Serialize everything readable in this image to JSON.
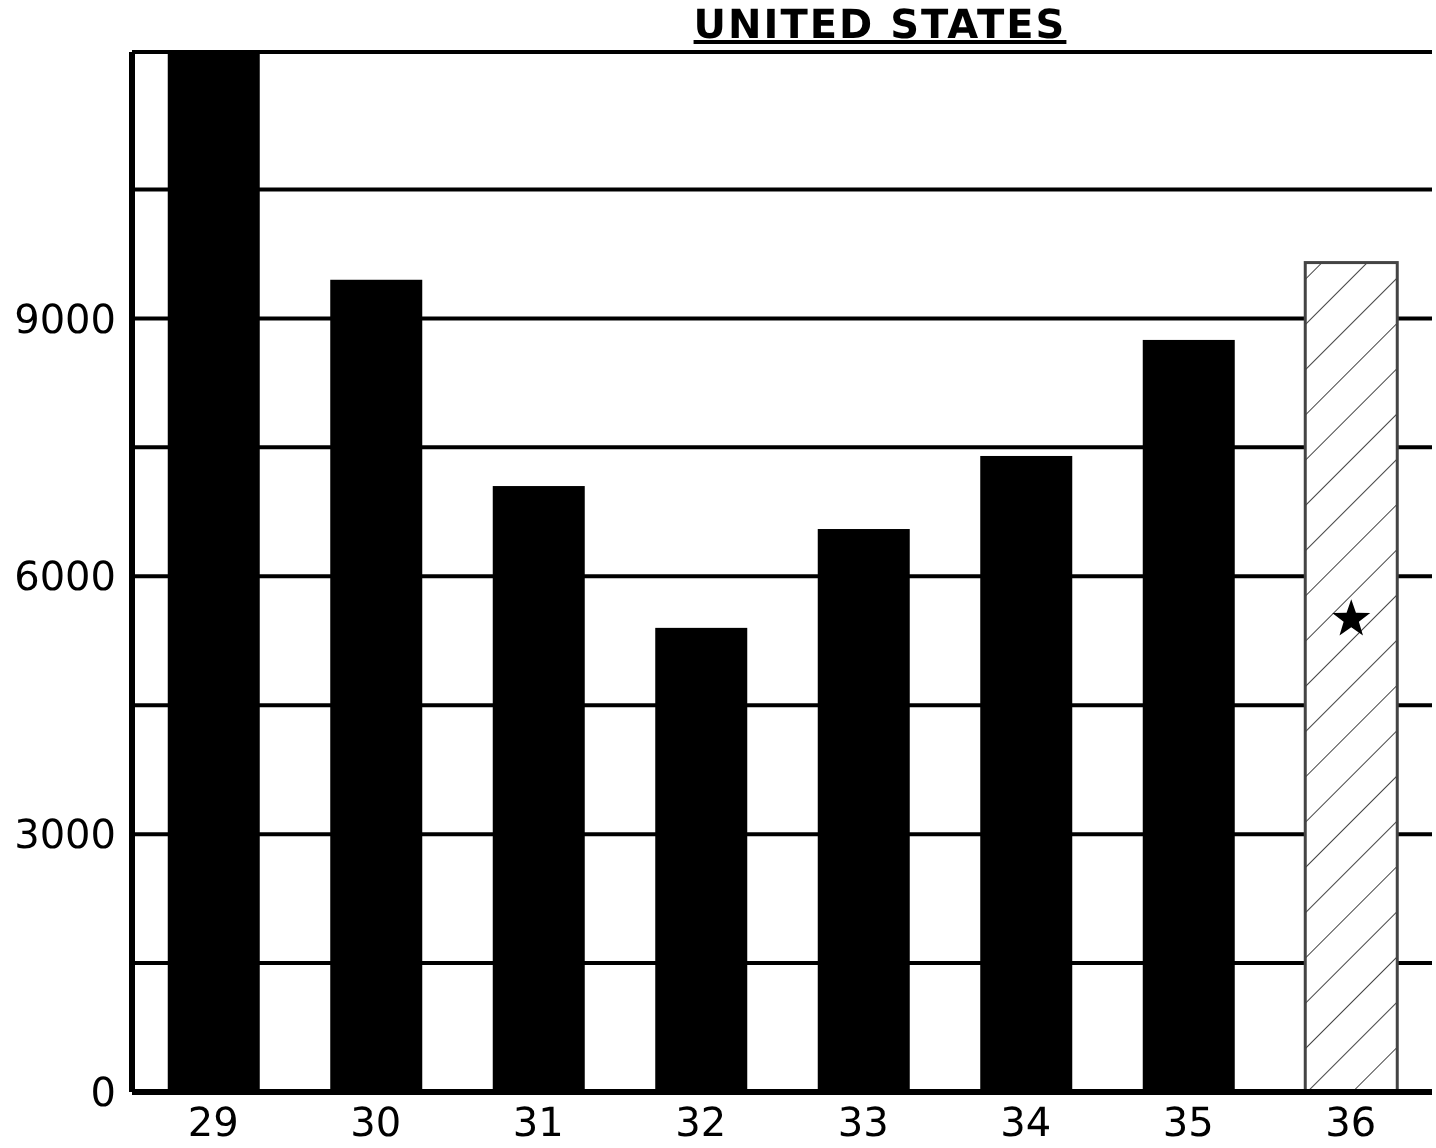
{
  "chart_data": {
    "type": "bar",
    "title": "UNITED STATES",
    "categories": [
      "29",
      "30",
      "31",
      "32",
      "33",
      "34",
      "35",
      "36"
    ],
    "values": [
      12100,
      9450,
      7050,
      5400,
      6550,
      7400,
      8750,
      9650
    ],
    "colors": [
      "#000000",
      "#000000",
      "#000000",
      "#000000",
      "#000000",
      "#000000",
      "#000000",
      "#ffffff"
    ],
    "ylim": [
      0,
      12100
    ],
    "yticks": [
      0,
      {
        "value": 1500,
        "label": null
      },
      3000,
      {
        "value": 4500,
        "label": null
      },
      6000,
      {
        "value": 7500,
        "label": null
      },
      9000,
      {
        "value": 10500,
        "label": null
      }
    ],
    "grid": "y"
  }
}
